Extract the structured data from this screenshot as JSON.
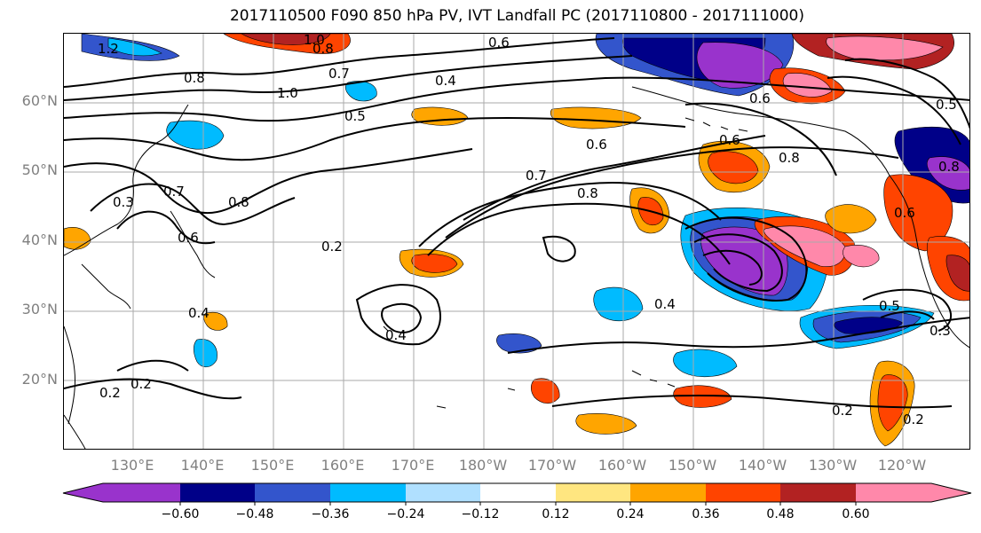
{
  "title": "2017110500 F090 850 hPa PV, IVT Landfall PC (2017110800 - 2017111000)",
  "lat_labels": [
    "60°N",
    "50°N",
    "40°N",
    "30°N",
    "20°N"
  ],
  "lon_labels": [
    "130°E",
    "140°E",
    "150°E",
    "160°E",
    "170°E",
    "180°W",
    "170°W",
    "160°W",
    "150°W",
    "140°W",
    "130°W",
    "120°W"
  ],
  "colorbar": {
    "ticks": [
      "−0.60",
      "−0.48",
      "−0.36",
      "−0.24",
      "−0.12",
      "0.12",
      "0.24",
      "0.36",
      "0.48",
      "0.60"
    ],
    "colors": [
      "#9933cc",
      "#000088",
      "#3355cc",
      "#00bbff",
      "#b0e0ff",
      "#ffffff",
      "#ffe680",
      "#ffa500",
      "#ff4400",
      "#b22222",
      "#ff88aa"
    ]
  },
  "contour_labels": [
    "1.2",
    "1.0",
    "0.8",
    "0.8",
    "0.7",
    "1.0",
    "0.5",
    "0.4",
    "0.6",
    "0.6",
    "0.7",
    "0.8",
    "0.3",
    "0.7",
    "0.6",
    "0.8",
    "0.2",
    "0.4",
    "0.4",
    "0.2",
    "0.2",
    "0.4",
    "0.6",
    "0.8",
    "0.6",
    "0.5",
    "0.3",
    "0.2",
    "0.2",
    "0.5",
    "0.8",
    "0.6"
  ],
  "colors": {
    "purple": "#9933cc",
    "navy": "#000088",
    "blue": "#3355cc",
    "cyan": "#00bbff",
    "lightblue": "#b0e0ff",
    "yellow": "#ffe680",
    "orange": "#ffa500",
    "redorange": "#ff4400",
    "darkred": "#b22222",
    "pink": "#ff88aa"
  }
}
